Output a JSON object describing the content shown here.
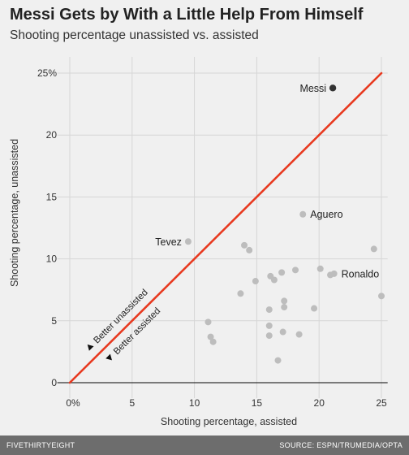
{
  "header": {
    "title": "Messi Gets by With a Little Help From Himself",
    "subtitle": "Shooting percentage unassisted vs. assisted"
  },
  "footer": {
    "brand": "FIVETHIRTYEIGHT",
    "source": "SOURCE: ESPN/TRUMEDIA/OPTA"
  },
  "chart_data": {
    "type": "scatter",
    "title": "Messi Gets by With a Little Help From Himself",
    "subtitle": "Shooting percentage unassisted vs. assisted",
    "xlabel": "Shooting percentage, assisted",
    "ylabel": "Shooting percentage, unassisted",
    "xlim": [
      -1,
      25.5
    ],
    "ylim": [
      0,
      26
    ],
    "x_ticks": [
      {
        "value": 0,
        "label": "0%"
      },
      {
        "value": 5,
        "label": "5"
      },
      {
        "value": 10,
        "label": "10"
      },
      {
        "value": 15,
        "label": "15"
      },
      {
        "value": 20,
        "label": "20"
      },
      {
        "value": 25,
        "label": "25"
      }
    ],
    "y_ticks": [
      {
        "value": 0,
        "label": "0"
      },
      {
        "value": 5,
        "label": "5"
      },
      {
        "value": 10,
        "label": "10"
      },
      {
        "value": 15,
        "label": "15"
      },
      {
        "value": 20,
        "label": "20"
      },
      {
        "value": 25,
        "label": "25%"
      }
    ],
    "grid": true,
    "reference_line": {
      "from": [
        0,
        0
      ],
      "to": [
        25,
        25
      ],
      "color": "#e8391f"
    },
    "annotations": [
      {
        "text": "Better unassisted",
        "x": 1.6,
        "y": 2.9,
        "side": "above"
      },
      {
        "text": "Better assisted",
        "x": 3.2,
        "y": 2.0,
        "side": "below"
      }
    ],
    "highlight_color": "#333333",
    "point_color": "#bdbdbd",
    "points": [
      {
        "x": 21.1,
        "y": 23.8,
        "label": "Messi",
        "highlight": true
      },
      {
        "x": 18.7,
        "y": 13.6,
        "label": "Aguero"
      },
      {
        "x": 9.5,
        "y": 11.4,
        "label": "Tevez"
      },
      {
        "x": 21.2,
        "y": 8.8,
        "label": "Ronaldo"
      },
      {
        "x": 14.0,
        "y": 11.1
      },
      {
        "x": 14.4,
        "y": 10.7
      },
      {
        "x": 24.4,
        "y": 10.8
      },
      {
        "x": 20.1,
        "y": 9.2
      },
      {
        "x": 18.1,
        "y": 9.1
      },
      {
        "x": 17.0,
        "y": 8.9
      },
      {
        "x": 16.1,
        "y": 8.6
      },
      {
        "x": 16.4,
        "y": 8.3
      },
      {
        "x": 14.9,
        "y": 8.2
      },
      {
        "x": 20.9,
        "y": 8.7
      },
      {
        "x": 13.7,
        "y": 7.2
      },
      {
        "x": 25.0,
        "y": 7.0
      },
      {
        "x": 17.2,
        "y": 6.6
      },
      {
        "x": 17.2,
        "y": 6.1
      },
      {
        "x": 16.0,
        "y": 5.9
      },
      {
        "x": 19.6,
        "y": 6.0
      },
      {
        "x": 11.1,
        "y": 4.9
      },
      {
        "x": 16.0,
        "y": 4.6
      },
      {
        "x": 17.1,
        "y": 4.1
      },
      {
        "x": 18.4,
        "y": 3.9
      },
      {
        "x": 16.0,
        "y": 3.8
      },
      {
        "x": 11.3,
        "y": 3.7
      },
      {
        "x": 11.5,
        "y": 3.3
      },
      {
        "x": 16.7,
        "y": 1.8
      }
    ]
  }
}
